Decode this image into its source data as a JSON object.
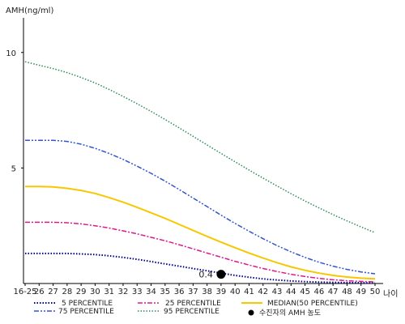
{
  "chart_data": {
    "type": "line",
    "title": "",
    "ylabel": "AMH(ng/ml)",
    "xlabel": "나이",
    "ylim": [
      0,
      11.5
    ],
    "yticks": [
      5,
      10
    ],
    "categories": [
      "16-25",
      "26",
      "27",
      "28",
      "29",
      "30",
      "31",
      "32",
      "33",
      "34",
      "35",
      "36",
      "37",
      "38",
      "39",
      "40",
      "41",
      "42",
      "43",
      "44",
      "45",
      "46",
      "47",
      "48",
      "49",
      "50"
    ],
    "grid": false,
    "series": [
      {
        "name": "5 PERCENTILE",
        "color": "#00008b",
        "dash": "1.5,2",
        "width": 2,
        "values": [
          1.3,
          1.3,
          1.3,
          1.3,
          1.28,
          1.25,
          1.2,
          1.13,
          1.05,
          0.95,
          0.85,
          0.75,
          0.65,
          0.55,
          0.45,
          0.35,
          0.27,
          0.2,
          0.15,
          0.11,
          0.08,
          0.06,
          0.05,
          0.04,
          0.03,
          0.02
        ]
      },
      {
        "name": "25 PERCENTILE",
        "color": "#e0188c",
        "dash": "6,2,2,2",
        "width": 1.5,
        "values": [
          2.65,
          2.65,
          2.65,
          2.63,
          2.58,
          2.5,
          2.4,
          2.28,
          2.15,
          2.0,
          1.85,
          1.68,
          1.5,
          1.32,
          1.14,
          0.96,
          0.8,
          0.65,
          0.52,
          0.4,
          0.3,
          0.22,
          0.16,
          0.12,
          0.09,
          0.07
        ]
      },
      {
        "name": "MEDIAN(50 PERCENTILE)",
        "color": "#f5c800",
        "dash": "",
        "width": 2,
        "values": [
          4.2,
          4.2,
          4.18,
          4.12,
          4.03,
          3.9,
          3.72,
          3.52,
          3.3,
          3.06,
          2.82,
          2.56,
          2.3,
          2.04,
          1.79,
          1.55,
          1.32,
          1.1,
          0.9,
          0.72,
          0.57,
          0.45,
          0.35,
          0.28,
          0.23,
          0.2
        ]
      },
      {
        "name": "75 PERCENTILE",
        "color": "#3355cc",
        "dash": "6,2,2,2,2,2",
        "width": 1.5,
        "values": [
          6.2,
          6.2,
          6.2,
          6.15,
          6.03,
          5.85,
          5.63,
          5.37,
          5.08,
          4.77,
          4.43,
          4.07,
          3.7,
          3.33,
          2.96,
          2.6,
          2.26,
          1.94,
          1.64,
          1.37,
          1.13,
          0.92,
          0.75,
          0.61,
          0.5,
          0.42
        ]
      },
      {
        "name": "95 PERCENTILE",
        "color": "#2e8b57",
        "dash": "1.5,2",
        "width": 1.5,
        "values": [
          9.6,
          9.45,
          9.3,
          9.13,
          8.92,
          8.68,
          8.4,
          8.1,
          7.78,
          7.45,
          7.1,
          6.74,
          6.37,
          6.0,
          5.63,
          5.27,
          4.91,
          4.56,
          4.22,
          3.89,
          3.57,
          3.27,
          2.98,
          2.71,
          2.45,
          2.2
        ]
      }
    ],
    "point": {
      "name": "수진자의 AMH 농도",
      "label": "0.4",
      "x": "39",
      "y": 0.4,
      "color": "#000000"
    },
    "legend": {
      "placement": "bottom",
      "order": [
        "5 PERCENTILE",
        "25 PERCENTILE",
        "MEDIAN(50 PERCENTILE)",
        "75 PERCENTILE",
        "95 PERCENTILE",
        "수진자의 AMH 농도"
      ]
    }
  }
}
